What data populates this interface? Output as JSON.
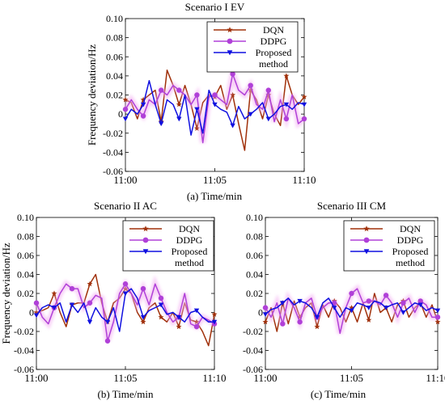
{
  "chart_data": [
    {
      "type": "line",
      "title": "Scenario I EV",
      "xlabel": "(a) Time/min",
      "ylabel": "Frequency deviation/Hz",
      "xlim": [
        0,
        10
      ],
      "ylim": [
        -0.06,
        0.1
      ],
      "yticks": [
        "-0.06",
        "-0.04",
        "-0.02",
        "0",
        "0.02",
        "0.04",
        "0.06",
        "0.08",
        "0.10"
      ],
      "xticks": [
        {
          "x": 0,
          "label": "11:00"
        },
        {
          "x": 5,
          "label": "11:05"
        },
        {
          "x": 10,
          "label": "11:10"
        }
      ],
      "legend": "top-right",
      "series": [
        {
          "name": "DQN",
          "color": "#a0300a",
          "marker": "star",
          "x": [
            0,
            0.33,
            0.67,
            1,
            1.33,
            1.67,
            2,
            2.33,
            2.67,
            3,
            3.33,
            3.67,
            4,
            4.33,
            4.67,
            5,
            5.33,
            5.67,
            6,
            6.33,
            6.67,
            7,
            7.33,
            7.67,
            8,
            8.33,
            8.67,
            9,
            9.33,
            9.67,
            10
          ],
          "values": [
            0.015,
            0.012,
            -0.005,
            0.015,
            0.02,
            0.025,
            -0.008,
            0.046,
            0.03,
            0.01,
            0.03,
            0.01,
            -0.015,
            0.012,
            0.02,
            0.018,
            0.03,
            0.005,
            0.02,
            -0.01,
            -0.038,
            0.025,
            0.015,
            -0.005,
            0.02,
            0,
            -0.012,
            0.04,
            0.02,
            0.01,
            0.018
          ]
        },
        {
          "name": "DDPG",
          "color": "#b040d8",
          "marker": "circle",
          "x": [
            0,
            0.33,
            0.67,
            1,
            1.33,
            1.67,
            2,
            2.33,
            2.67,
            3,
            3.33,
            3.67,
            4,
            4.33,
            4.67,
            5,
            5.33,
            5.67,
            6,
            6.33,
            6.67,
            7,
            7.33,
            7.67,
            8,
            8.33,
            8.67,
            9,
            9.33,
            9.67,
            10
          ],
          "values": [
            0.005,
            0.015,
            0.005,
            -0.002,
            0.015,
            0.01,
            0.025,
            0.02,
            0.03,
            0.025,
            0.02,
            0.01,
            0.02,
            -0.03,
            0.018,
            0.02,
            0.015,
            0.01,
            0.042,
            0.025,
            0.02,
            0.03,
            0.01,
            0.005,
            0.025,
            -0.008,
            0.015,
            -0.005,
            0.02,
            -0.01,
            -0.005
          ]
        },
        {
          "name": "Proposed method",
          "color": "#1010e0",
          "marker": "triangle-down",
          "x": [
            0,
            0.33,
            0.67,
            1,
            1.33,
            1.67,
            2,
            2.33,
            2.67,
            3,
            3.33,
            3.67,
            4,
            4.33,
            4.67,
            5,
            5.33,
            5.67,
            6,
            6.33,
            6.67,
            7,
            7.33,
            7.67,
            8,
            8.33,
            8.67,
            9,
            9.33,
            9.67,
            10
          ],
          "values": [
            -0.005,
            0.005,
            0,
            0.01,
            0.035,
            0.01,
            -0.01,
            0.015,
            0.01,
            -0.005,
            0.02,
            -0.022,
            0.005,
            -0.02,
            0.025,
            0.01,
            0.005,
            0.002,
            -0.012,
            0.008,
            -0.005,
            0,
            0.005,
            0.012,
            -0.005,
            0,
            0.008,
            0.01,
            0.005,
            0.012,
            0.01
          ]
        }
      ]
    },
    {
      "type": "line",
      "title": "Scenario II AC",
      "xlabel": "(b) Time/min",
      "ylabel": "Frequency deviation/Hz",
      "xlim": [
        0,
        10
      ],
      "ylim": [
        -0.06,
        0.1
      ],
      "yticks": [
        "-0.06",
        "-0.04",
        "-0.02",
        "0",
        "0.02",
        "0.04",
        "0.06",
        "0.08",
        "0.10"
      ],
      "xticks": [
        {
          "x": 0,
          "label": "11:00"
        },
        {
          "x": 5,
          "label": "11:05"
        },
        {
          "x": 10,
          "label": "11:10"
        }
      ],
      "legend": "top-right",
      "series": [
        {
          "name": "DQN",
          "color": "#a0300a",
          "marker": "star",
          "x": [
            0,
            0.33,
            0.67,
            1,
            1.33,
            1.67,
            2,
            2.33,
            2.67,
            3,
            3.33,
            3.67,
            4,
            4.33,
            4.67,
            5,
            5.33,
            5.67,
            6,
            6.33,
            6.67,
            7,
            7.33,
            7.67,
            8,
            8.33,
            8.67,
            9,
            9.33,
            9.67,
            10
          ],
          "values": [
            0,
            0.002,
            0.005,
            0.02,
            0,
            -0.015,
            0.008,
            0.01,
            0.01,
            0.03,
            0.04,
            0.01,
            -0.01,
            0.01,
            0.015,
            0.025,
            0.02,
            0,
            -0.01,
            0.005,
            0.01,
            -0.005,
            -0.01,
            0,
            -0.015,
            0.01,
            -0.008,
            -0.01,
            -0.02,
            -0.035,
            -0.002
          ]
        },
        {
          "name": "DDPG",
          "color": "#b040d8",
          "marker": "circle",
          "x": [
            0,
            0.33,
            0.67,
            1,
            1.33,
            1.67,
            2,
            2.33,
            2.67,
            3,
            3.33,
            3.67,
            4,
            4.33,
            4.67,
            5,
            5.33,
            5.67,
            6,
            6.33,
            6.67,
            7,
            7.33,
            7.67,
            8,
            8.33,
            8.67,
            9,
            9.33,
            9.67,
            10
          ],
          "values": [
            0.01,
            -0.005,
            -0.012,
            0.005,
            0.02,
            0.03,
            0.025,
            0.025,
            0.005,
            0.01,
            0.018,
            0.015,
            -0.03,
            -0.01,
            0.02,
            0.03,
            0.02,
            0.008,
            0.025,
            0.008,
            0.03,
            0.015,
            0,
            -0.01,
            -0.005,
            0.02,
            -0.012,
            -0.015,
            -0.005,
            -0.008,
            -0.012
          ]
        },
        {
          "name": "Proposed method",
          "color": "#1010e0",
          "marker": "triangle-down",
          "x": [
            0,
            0.33,
            0.67,
            1,
            1.33,
            1.67,
            2,
            2.33,
            2.67,
            3,
            3.33,
            3.67,
            4,
            4.33,
            4.67,
            5,
            5.33,
            5.67,
            6,
            6.33,
            6.67,
            7,
            7.33,
            7.67,
            8,
            8.33,
            8.67,
            9,
            9.33,
            9.67,
            10
          ],
          "values": [
            -0.003,
            0.005,
            0.008,
            0.005,
            0.01,
            -0.01,
            0.008,
            0,
            0.01,
            -0.01,
            0.005,
            -0.005,
            -0.01,
            0.005,
            -0.02,
            0.02,
            0.025,
            0.015,
            -0.005,
            0.002,
            0.005,
            0.008,
            -0.002,
            0,
            -0.005,
            -0.01,
            0,
            0.002,
            -0.005,
            -0.01,
            -0.01
          ]
        }
      ]
    },
    {
      "type": "line",
      "title": "Scenario III  CM",
      "xlabel": "(c) Time/min",
      "ylabel": "",
      "xlim": [
        0,
        10
      ],
      "ylim": [
        -0.06,
        0.1
      ],
      "yticks": [
        "-0.06",
        "-0.04",
        "-0.02",
        "0",
        "0.02",
        "0.04",
        "0.06",
        "0.08",
        "0.10"
      ],
      "xticks": [
        {
          "x": 0,
          "label": "11:00"
        },
        {
          "x": 5,
          "label": "11:05"
        },
        {
          "x": 10,
          "label": "11:10"
        }
      ],
      "legend": "top-right",
      "series": [
        {
          "name": "DQN",
          "color": "#a0300a",
          "marker": "star",
          "x": [
            0,
            0.33,
            0.67,
            1,
            1.33,
            1.67,
            2,
            2.33,
            2.67,
            3,
            3.33,
            3.67,
            4,
            4.33,
            4.67,
            5,
            5.33,
            5.67,
            6,
            6.33,
            6.67,
            7,
            7.33,
            7.67,
            8,
            8.33,
            8.67,
            9,
            9.33,
            9.67,
            10
          ],
          "values": [
            -0.01,
            0.005,
            -0.02,
            0.01,
            -0.012,
            0.012,
            -0.005,
            0.005,
            0.01,
            -0.015,
            0.008,
            -0.005,
            0.012,
            0.005,
            -0.01,
            0.005,
            -0.01,
            0.01,
            -0.008,
            0.02,
            0,
            0.005,
            -0.01,
            0.008,
            0.012,
            -0.005,
            0.005,
            0.01,
            -0.005,
            0.008,
            -0.01
          ]
        },
        {
          "name": "DDPG",
          "color": "#b040d8",
          "marker": "circle",
          "x": [
            0,
            0.33,
            0.67,
            1,
            1.33,
            1.67,
            2,
            2.33,
            2.67,
            3,
            3.33,
            3.67,
            4,
            4.33,
            4.67,
            5,
            5.33,
            5.67,
            6,
            6.33,
            6.67,
            7,
            7.33,
            7.67,
            8,
            8.33,
            8.67,
            9,
            9.33,
            9.67,
            10
          ],
          "values": [
            0.005,
            -0.005,
            0.01,
            -0.012,
            0.015,
            0.005,
            -0.01,
            0.01,
            0.015,
            -0.005,
            0.005,
            0.01,
            0.01,
            -0.022,
            0.005,
            0.02,
            0.025,
            0.01,
            0.012,
            0.012,
            0.008,
            0.018,
            0.01,
            -0.005,
            0.01,
            0.015,
            0,
            0.012,
            0.008,
            -0.005,
            -0.005
          ]
        },
        {
          "name": "Proposed method",
          "color": "#1010e0",
          "marker": "triangle-down",
          "x": [
            0,
            0.33,
            0.67,
            1,
            1.33,
            1.67,
            2,
            2.33,
            2.67,
            3,
            3.33,
            3.67,
            4,
            4.33,
            4.67,
            5,
            5.33,
            5.67,
            6,
            6.33,
            6.67,
            7,
            7.33,
            7.67,
            8,
            8.33,
            8.67,
            9,
            9.33,
            9.67,
            10
          ],
          "values": [
            -0.002,
            0.003,
            0.005,
            0.01,
            0.015,
            0.008,
            0.012,
            0.01,
            0.005,
            -0.005,
            0.01,
            0.015,
            0.005,
            -0.005,
            0.005,
            0.002,
            0.01,
            0.008,
            0.005,
            0.012,
            0.01,
            0.005,
            0.008,
            0.01,
            0,
            0.005,
            0.01,
            0.008,
            0.002,
            0.005,
            0.002
          ]
        }
      ]
    }
  ]
}
